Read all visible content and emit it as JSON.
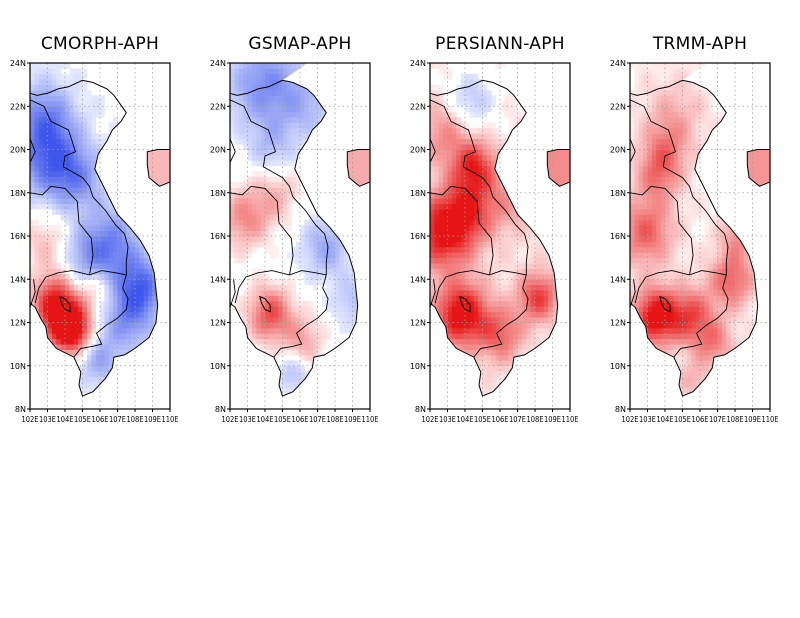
{
  "panels": [
    {
      "title": "CMORPH-APH"
    },
    {
      "title": "GSMAP-APH"
    },
    {
      "title": "PERSIANN-APH"
    },
    {
      "title": "TRMM-APH"
    }
  ],
  "lat_ticks": [
    "8N",
    "10N",
    "12N",
    "14N",
    "16N",
    "18N",
    "20N",
    "22N",
    "24N"
  ],
  "lon_ticks": [
    "102E",
    "103E",
    "104E",
    "105E",
    "106E",
    "107E",
    "108E",
    "109E",
    "110E"
  ],
  "extent": {
    "lon": [
      102,
      110
    ],
    "lat": [
      8,
      24
    ]
  },
  "colors": {
    "positive": "#e41a1c",
    "negative": "#3f4fd8",
    "gridline": "#a0a0a0",
    "coast": "#000000"
  }
}
